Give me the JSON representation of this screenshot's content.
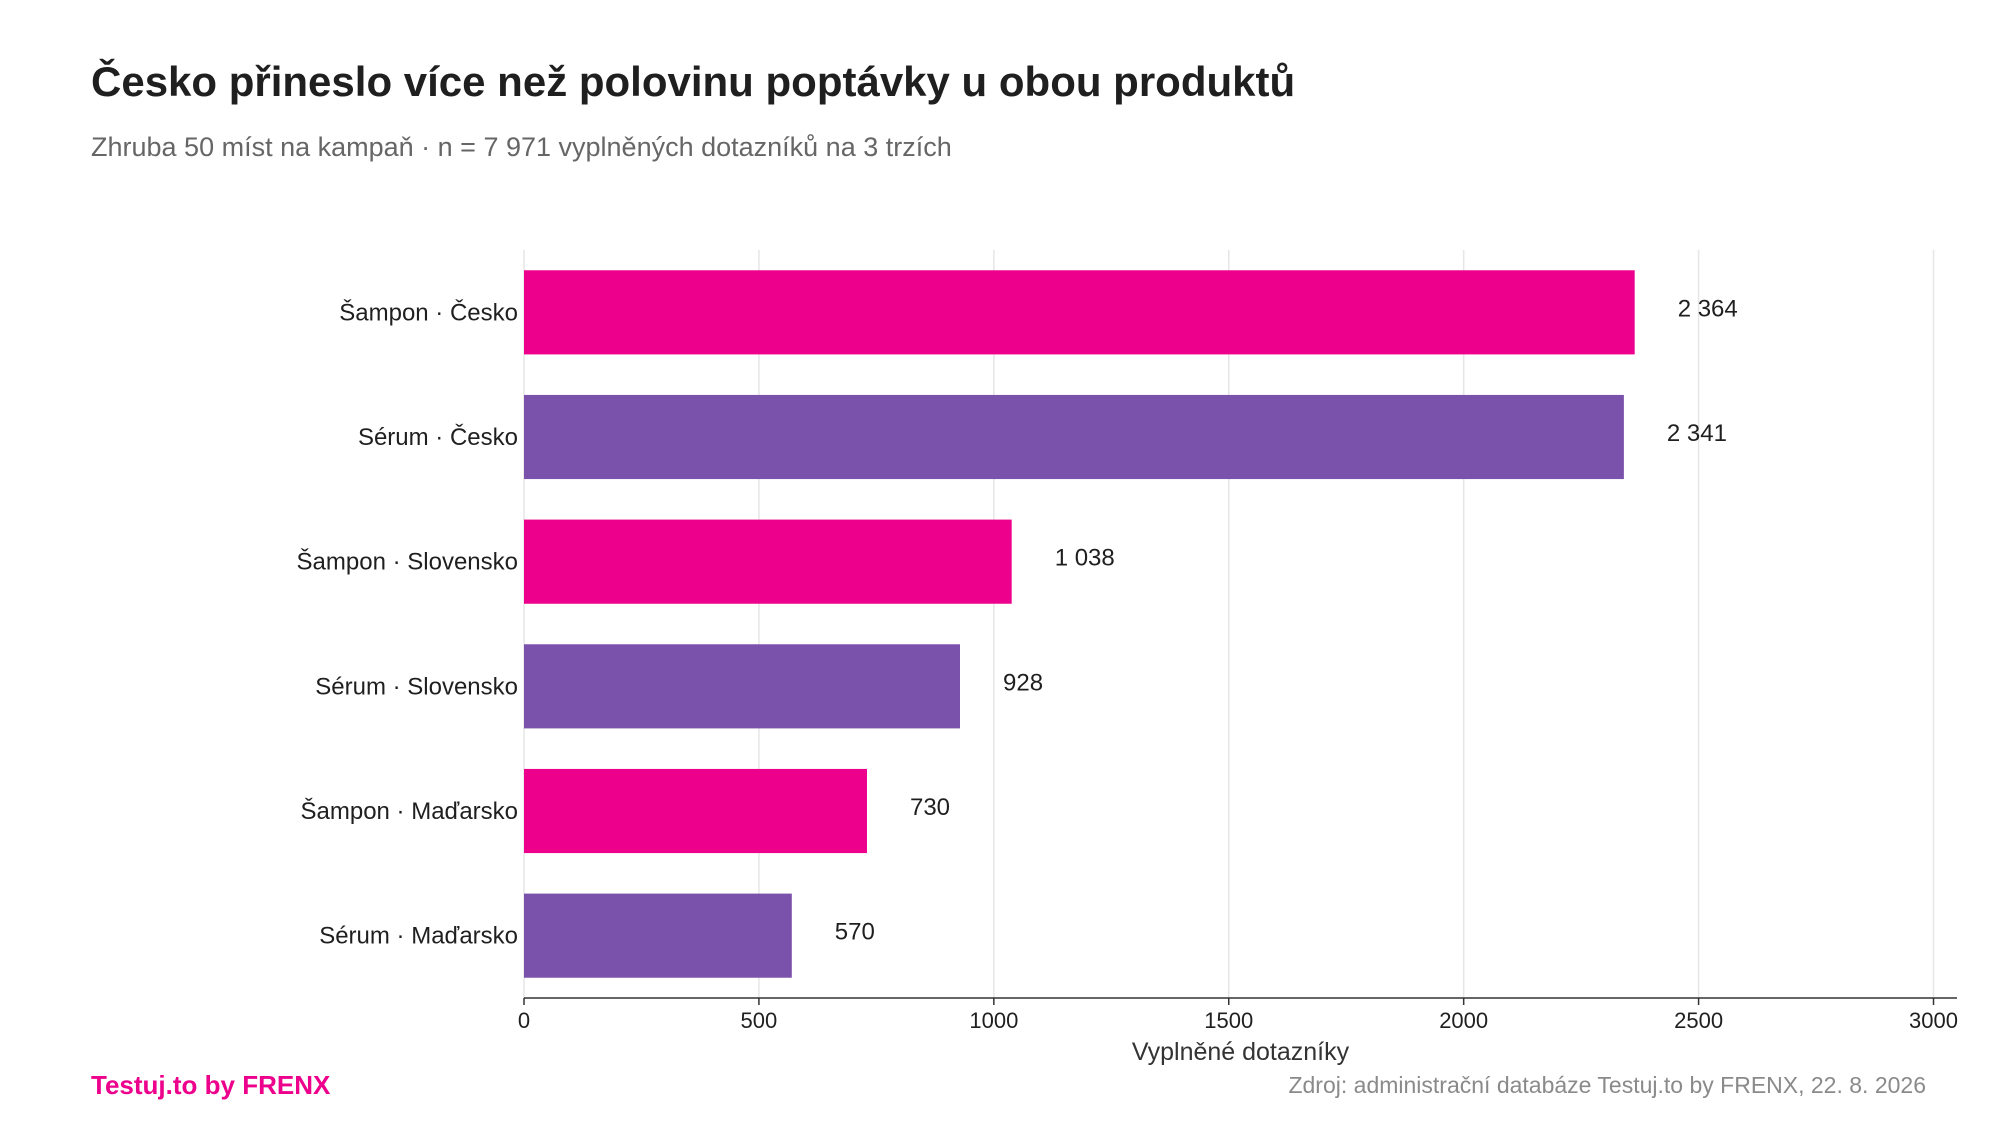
{
  "header": {
    "title": "Česko přineslo více než polovinu poptávky u obou produktů",
    "subtitle": "Zhruba 50 míst na kampaň · n = 7 971 vyplněných dotazníků na 3 trzích"
  },
  "footer": {
    "brand": "Testuj.to by FRENX",
    "source": "Zdroj: administrační databáze Testuj.to by FRENX, 22. 8. 2026"
  },
  "colors": {
    "shampoo": "#ec008c",
    "serum": "#7b52ab",
    "grid": "#e6e6e6",
    "axis": "#333333",
    "text": "#1f1f1f"
  },
  "chart_data": {
    "type": "bar",
    "orientation": "horizontal",
    "categories": [
      "Šampon · Česko",
      "Sérum · Česko",
      "Šampon · Slovensko",
      "Sérum · Slovensko",
      "Šampon · Maďarsko",
      "Sérum · Maďarsko"
    ],
    "values": [
      2364,
      2341,
      1038,
      928,
      730,
      570
    ],
    "value_labels": [
      "2 364",
      "2 341",
      "1 038",
      "928",
      "730",
      "570"
    ],
    "bar_colors": [
      "#ec008c",
      "#7b52ab",
      "#ec008c",
      "#7b52ab",
      "#ec008c",
      "#7b52ab"
    ],
    "xlabel": "Vyplněné dotazníky",
    "ylabel": "",
    "xlim": [
      0,
      3050
    ],
    "xticks": [
      0,
      500,
      1000,
      1500,
      2000,
      2500,
      3000
    ],
    "grid": "vertical",
    "legend": "none"
  }
}
